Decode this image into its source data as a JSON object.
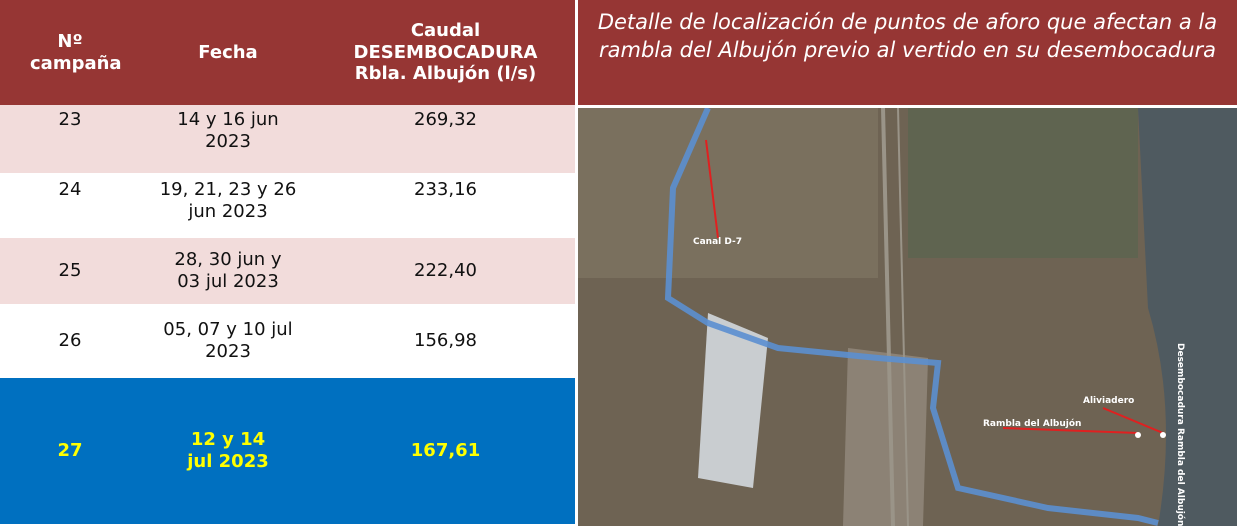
{
  "table": {
    "header": [
      "Nº campaña",
      "Fecha",
      "Caudal DESEMBOCADURA Rbla. Albujón (l/s)"
    ],
    "rows": [
      {
        "campana": "23",
        "fecha": [
          "14 y 16 jun",
          "2023"
        ],
        "caudal": "269,32"
      },
      {
        "campana": "24",
        "fecha": [
          "19, 21, 23 y 26",
          "jun 2023"
        ],
        "caudal": "233,16"
      },
      {
        "campana": "25",
        "fecha": [
          "28, 30 jun y",
          "03 jul 2023"
        ],
        "caudal": "222,40"
      },
      {
        "campana": "26",
        "fecha": [
          "05, 07 y 10 jul",
          "2023"
        ],
        "caudal": "156,98"
      },
      {
        "campana": "27",
        "fecha": [
          "12 y 14",
          "jul 2023"
        ],
        "caudal": "167,61"
      }
    ]
  },
  "map": {
    "title": "Detalle de localización de puntos de aforo que afectan a la rambla del Albujón previo al vertido en su desembocadura",
    "labels": [
      "Canal D-7",
      "Aliviadero",
      "Rambla del Albujón",
      "Desembocadura Rambla del Albujón"
    ]
  }
}
